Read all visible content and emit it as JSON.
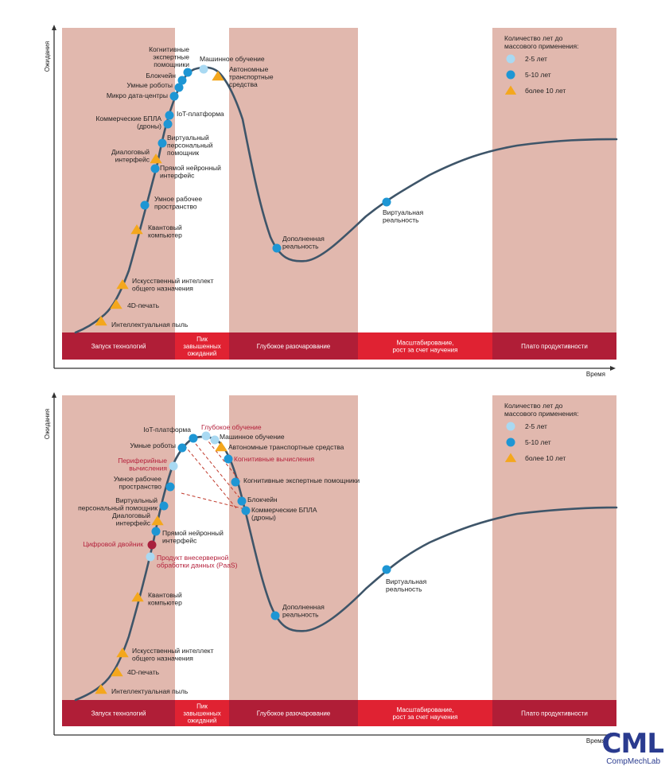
{
  "legend": {
    "title_lines": [
      "Количество лет до",
      "массового применения:"
    ],
    "items": [
      {
        "label": "2-5 лет",
        "shape": "circle",
        "color": "#a9d9f2"
      },
      {
        "label": "5-10 лет",
        "shape": "circle",
        "color": "#1e96d4"
      },
      {
        "label": "более 10 лет",
        "shape": "triangle",
        "color": "#f4a71d"
      }
    ]
  },
  "axes": {
    "y_label": "Ожидания",
    "x_label": "Время"
  },
  "phases": [
    {
      "label_lines": [
        "Запуск технологий"
      ],
      "band": "#e1b8ae",
      "bar": "#b01e37"
    },
    {
      "label_lines": [
        "Пик",
        "завышенных",
        "ожиданий"
      ],
      "band": "#ffffff",
      "bar": "#e02232"
    },
    {
      "label_lines": [
        "Глубокое разочарование"
      ],
      "band": "#e1b8ae",
      "bar": "#b01e37"
    },
    {
      "label_lines": [
        "Масштабирование,",
        "рост за счет научения"
      ],
      "band": "#ffffff",
      "bar": "#e02232"
    },
    {
      "label_lines": [
        "Плато продуктивности"
      ],
      "band": "#e1b8ae",
      "bar": "#b01e37"
    }
  ],
  "colors": {
    "curve": "#3e5569",
    "axis": "#333333",
    "text": "#222222",
    "highlight_text": "#b41f3a",
    "dashed": "#c0392b",
    "digital_twin": "#a8213d"
  },
  "charts": [
    {
      "points": [
        {
          "lines": [
            "Интеллектуальная пыль"
          ],
          "type": "tri10"
        },
        {
          "lines": [
            "4D-печать"
          ],
          "type": "tri10"
        },
        {
          "lines": [
            "Искусственный интеллект",
            "общего назначения"
          ],
          "type": "tri10"
        },
        {
          "lines": [
            "Квантовый",
            "компьютер"
          ],
          "type": "tri10"
        },
        {
          "lines": [
            "Умное рабочее",
            "пространство"
          ],
          "type": "dot5"
        },
        {
          "lines": [
            "Прямой нейронный",
            "интерфейс"
          ],
          "type": "dot5"
        },
        {
          "lines": [
            "Диалоговый",
            "интерфейс"
          ],
          "type": "tri10"
        },
        {
          "lines": [
            "Виртуальный",
            "персональный",
            "помощник"
          ],
          "type": "dot5"
        },
        {
          "lines": [
            "Коммерческие БПЛА",
            "(дроны)"
          ],
          "type": "dot5"
        },
        {
          "lines": [
            "IoT-платформа"
          ],
          "type": "dot5"
        },
        {
          "lines": [
            "Микро дата-центры"
          ],
          "type": "dot5"
        },
        {
          "lines": [
            "Умные роботы"
          ],
          "type": "dot5"
        },
        {
          "lines": [
            "Блокчейн"
          ],
          "type": "dot5"
        },
        {
          "lines": [
            "Когнитивные",
            "экспертные",
            "помощники"
          ],
          "type": "dot5"
        },
        {
          "lines": [
            "Машинное обучение"
          ],
          "type": "dot2"
        },
        {
          "lines": [
            "Автономные",
            "транспортные",
            "средства"
          ],
          "type": "tri10"
        },
        {
          "lines": [
            "Дополненная",
            "реальность"
          ],
          "type": "dot5"
        },
        {
          "lines": [
            "Виртуальная",
            "реальность"
          ],
          "type": "dot5"
        }
      ]
    },
    {
      "points": [
        {
          "lines": [
            "Интеллектуальная пыль"
          ],
          "type": "tri10"
        },
        {
          "lines": [
            "4D-печать"
          ],
          "type": "tri10"
        },
        {
          "lines": [
            "Искусственный интеллект",
            "общего назначения"
          ],
          "type": "tri10"
        },
        {
          "lines": [
            "Квантовый",
            "компьютер"
          ],
          "type": "tri10"
        },
        {
          "lines": [
            "Продукт внесерверной",
            "обработки данных (PaaS)"
          ],
          "type": "dot2",
          "highlight": true
        },
        {
          "lines": [
            "Цифровой двойник"
          ],
          "type": "twin",
          "highlight": true
        },
        {
          "lines": [
            "Прямой нейронный",
            "интерфейс"
          ],
          "type": "dot5"
        },
        {
          "lines": [
            "Диалоговый",
            "интерфейс"
          ],
          "type": "tri10"
        },
        {
          "lines": [
            "Виртуальный",
            "персональный помощник"
          ],
          "type": "dot5"
        },
        {
          "lines": [
            "Умное рабочее",
            "пространство"
          ],
          "type": "dot5"
        },
        {
          "lines": [
            "Периферийные",
            "вычисления"
          ],
          "type": "dot2",
          "highlight": true
        },
        {
          "lines": [
            "Умные роботы"
          ],
          "type": "dot5"
        },
        {
          "lines": [
            "IoT-платформа"
          ],
          "type": "dot5"
        },
        {
          "lines": [
            "Глубокое обучение"
          ],
          "type": "dot2",
          "highlight": true
        },
        {
          "lines": [
            "Машинное обучение"
          ],
          "type": "dot2"
        },
        {
          "lines": [
            "Автономные транспортные средства"
          ],
          "type": "tri10"
        },
        {
          "lines": [
            "Когнитивные вычисления"
          ],
          "type": "dot5",
          "highlight": true
        },
        {
          "lines": [
            "Когнитивные экспертные помощники"
          ],
          "type": "dot5"
        },
        {
          "lines": [
            "Блокчейн"
          ],
          "type": "dot5"
        },
        {
          "lines": [
            "Коммерческие БПЛА",
            "(дроны)"
          ],
          "type": "dot5"
        },
        {
          "lines": [
            "Дополненная",
            "реальность"
          ],
          "type": "dot5"
        },
        {
          "lines": [
            "Виртуальная",
            "реальность"
          ],
          "type": "dot5"
        }
      ]
    }
  ],
  "logo": {
    "main": "CML",
    "sub": "CompMechLab"
  }
}
